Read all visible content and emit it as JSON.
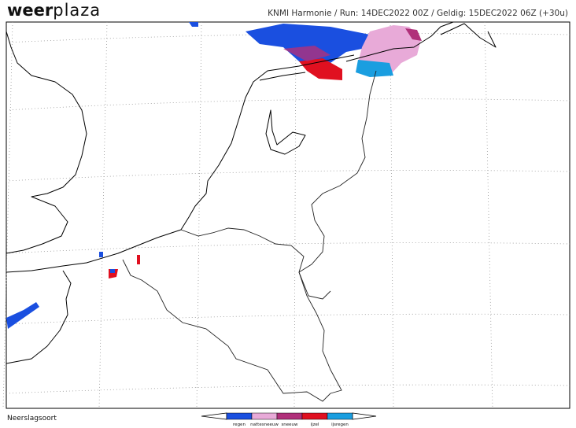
{
  "header": {
    "logo_bold": "weer",
    "logo_light": "plaza",
    "info": "KNMI Harmonie / Run: 14DEC2022 00Z / Geldig: 15DEC2022 06Z (+30u)"
  },
  "footer": {
    "title": "Neerslagsoort"
  },
  "legend": {
    "items": [
      {
        "label": "regen",
        "color": "#1a4fe0"
      },
      {
        "label": "nattesneeuw",
        "color": "#e8aad8"
      },
      {
        "label": "sneeuw",
        "color": "#b0307a"
      },
      {
        "label": "ijzel",
        "color": "#e01020"
      },
      {
        "label": "ijsregen",
        "color": "#1a9ee0"
      }
    ]
  }
}
